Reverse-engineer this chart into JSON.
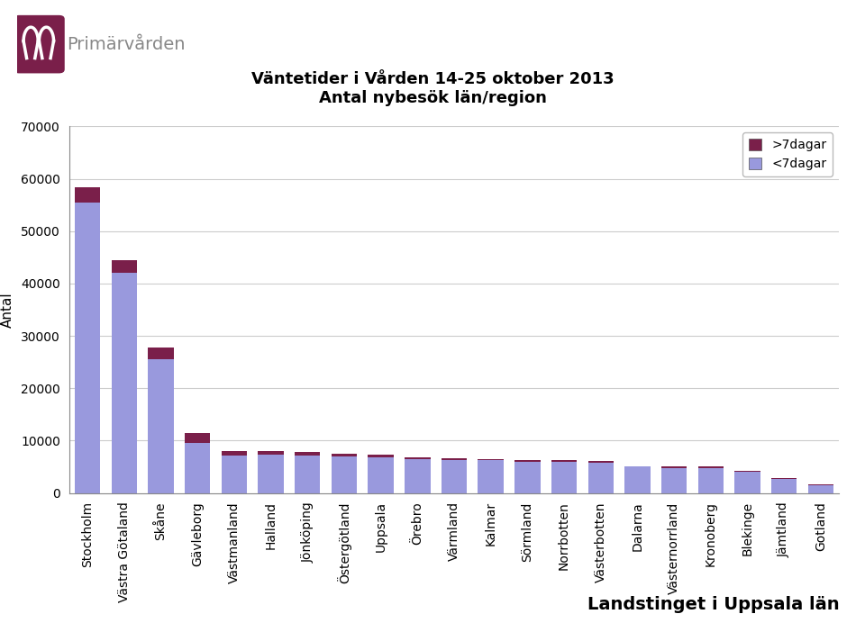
{
  "categories": [
    "Stockholm",
    "Västra Götaland",
    "Skåne",
    "Gävleborg",
    "Västmanland",
    "Halland",
    "Jönköping",
    "Östergötland",
    "Uppsala",
    "Örebro",
    "Värmland",
    "Kalmar",
    "Sörmland",
    "Norrbotten",
    "Västerbotten",
    "Dalarna",
    "Västernorrland",
    "Kronoberg",
    "Blekinge",
    "Jämtland",
    "Gotland"
  ],
  "lt7": [
    55500,
    42000,
    25600,
    9600,
    7100,
    7400,
    7100,
    6900,
    6800,
    6400,
    6300,
    6200,
    6000,
    5900,
    5700,
    5000,
    4800,
    4800,
    4000,
    2600,
    1550
  ],
  "gt7": [
    2800,
    2500,
    2200,
    1900,
    900,
    600,
    700,
    600,
    450,
    350,
    380,
    300,
    350,
    330,
    400,
    100,
    280,
    200,
    200,
    250,
    150
  ],
  "color_lt7": "#9999dd",
  "color_gt7": "#7a1f4a",
  "title_line1": "Väntetider i Vården 14-25 oktober 2013",
  "title_line2": "Antal nybesök län/region",
  "ylabel": "Antal",
  "ylim": [
    0,
    70000
  ],
  "yticks": [
    0,
    10000,
    20000,
    30000,
    40000,
    50000,
    60000,
    70000
  ],
  "legend_gt7": ">7dagar",
  "legend_lt7": "<7dagar",
  "bg_color": "#ffffff",
  "plot_bg": "#ffffff",
  "grid_color": "#cccccc",
  "title_fontsize": 13,
  "axis_fontsize": 11,
  "tick_fontsize": 10,
  "logo_color_dark": "#7a1f4a",
  "logo_text": "Primärvården",
  "logo_text_color": "#888888",
  "bottom_text": "Landstinget i Uppsala län",
  "bottom_text_color": "#000000"
}
